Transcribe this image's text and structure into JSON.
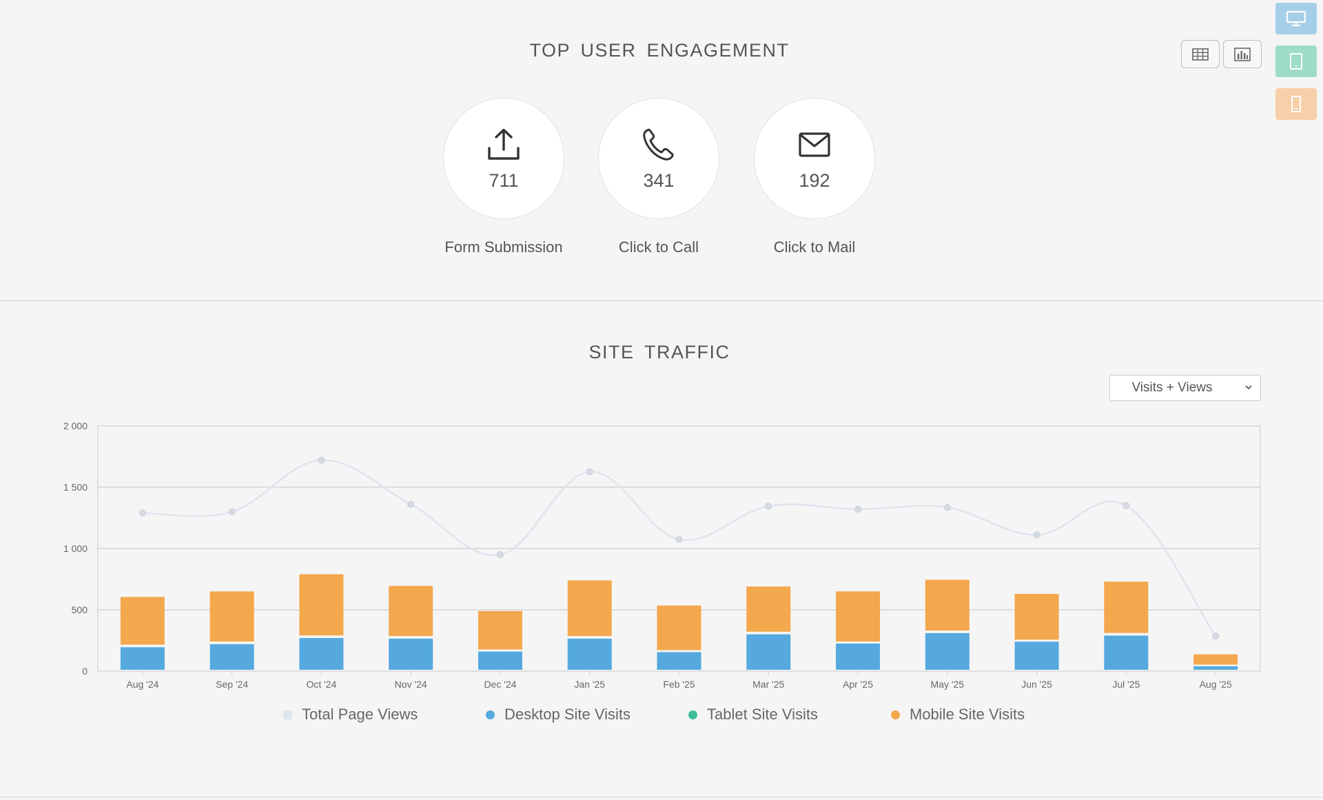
{
  "engagement": {
    "title": "TOP USER ENGAGEMENT",
    "items": [
      {
        "icon": "upload-icon",
        "value": "711",
        "label": "Form Submission"
      },
      {
        "icon": "phone-icon",
        "value": "341",
        "label": "Click to Call"
      },
      {
        "icon": "mail-icon",
        "value": "192",
        "label": "Click to Mail"
      }
    ]
  },
  "view_toggles": [
    {
      "icon": "table-icon"
    },
    {
      "icon": "bar-chart-icon"
    }
  ],
  "device_buttons": [
    {
      "icon": "desktop-icon",
      "color": "#a5cfe9"
    },
    {
      "icon": "tablet-icon",
      "color": "#9fdcc6"
    },
    {
      "icon": "mobile-icon",
      "color": "#f6d0a8"
    }
  ],
  "traffic": {
    "title": "SITE TRAFFIC",
    "select": {
      "value": "Visits + Views"
    }
  },
  "chart_data": {
    "type": "bar",
    "stacked": true,
    "categories": [
      "Aug '24",
      "Sep '24",
      "Oct '24",
      "Nov '24",
      "Dec '24",
      "Jan '25",
      "Feb '25",
      "Mar '25",
      "Apr '25",
      "May '25",
      "Jun '25",
      "Jul '25",
      "Aug '25"
    ],
    "y_ticks": [
      "0",
      "500",
      "1 000",
      "1 500",
      "2 000"
    ],
    "ylim": [
      0,
      2000
    ],
    "grid": true,
    "legend_position": "bottom",
    "series": [
      {
        "name": "Total Page Views",
        "type": "line",
        "color": "#dfe5ee",
        "values": [
          1290,
          1300,
          1720,
          1360,
          950,
          1625,
          1075,
          1345,
          1320,
          1335,
          1110,
          1350,
          285
        ]
      },
      {
        "name": "Desktop Site Visits",
        "type": "bar",
        "color": "#55a9de",
        "values": [
          195,
          220,
          270,
          265,
          160,
          265,
          155,
          300,
          225,
          310,
          240,
          290,
          40
        ]
      },
      {
        "name": "Tablet Site Visits",
        "type": "bar",
        "color": "#3dbf9a",
        "values": [
          10,
          10,
          10,
          10,
          5,
          10,
          5,
          10,
          5,
          10,
          5,
          10,
          2
        ]
      },
      {
        "name": "Mobile Site Visits",
        "type": "bar",
        "color": "#f3a84d",
        "values": [
          400,
          420,
          510,
          420,
          325,
          465,
          375,
          380,
          420,
          425,
          385,
          430,
          95
        ]
      }
    ]
  }
}
